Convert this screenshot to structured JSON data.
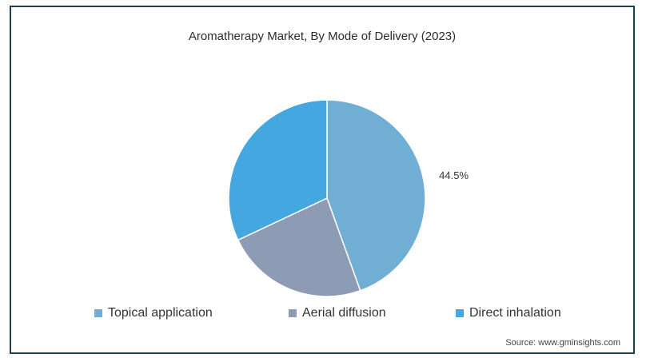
{
  "chart_data": {
    "type": "pie",
    "title": "Aromatherapy Market, By Mode of Delivery (2023)",
    "categories": [
      "Topical application",
      "Aerial diffusion",
      "Direct inhalation"
    ],
    "values": [
      44.5,
      23.5,
      32.0
    ],
    "data_labels": [
      "44.5%",
      "",
      ""
    ],
    "colors": [
      "#70aed3",
      "#8d9bb5",
      "#44a7df"
    ],
    "legend_position": "bottom"
  },
  "source": "Source: www.gminsights.com"
}
